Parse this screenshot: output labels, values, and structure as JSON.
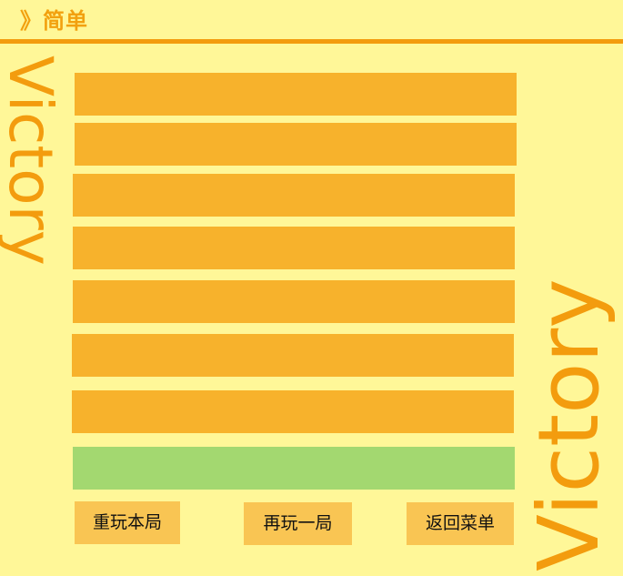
{
  "header": {
    "title": "》简单"
  },
  "banner": {
    "left_text": "Victory",
    "right_text": "Victory"
  },
  "rows": [
    {
      "state": "filled"
    },
    {
      "state": "filled"
    },
    {
      "state": "filled"
    },
    {
      "state": "filled"
    },
    {
      "state": "filled"
    },
    {
      "state": "filled"
    },
    {
      "state": "filled"
    },
    {
      "state": "success"
    }
  ],
  "buttons": {
    "replay_label": "重玩本局",
    "again_label": "再玩一局",
    "menu_label": "返回菜单"
  },
  "colors": {
    "background": "#FFF798",
    "accent": "#F39C0E",
    "row_filled": "#F7B22C",
    "row_success": "#A3D870",
    "button": "#F9C553"
  }
}
